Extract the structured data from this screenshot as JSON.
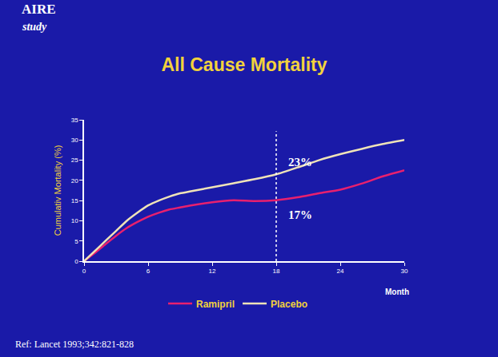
{
  "chart_data": {
    "type": "line",
    "title": "All Cause Mortality",
    "study_label": "AIRE",
    "study_sublabel": "study",
    "source": "Ref: Lancet 1993;342:821-828",
    "xlabel": "Month",
    "ylabel": "Cumulativ Mortality (%)",
    "x": [
      0,
      1,
      2,
      3,
      4,
      5,
      6,
      7,
      8,
      9,
      10,
      12,
      14,
      16,
      18,
      20,
      22,
      24,
      26,
      28,
      30
    ],
    "series": [
      {
        "name": "Ramipril",
        "color": "#e8206e",
        "values": [
          0,
          2,
          4.2,
          6.3,
          8.2,
          9.7,
          11,
          12,
          12.8,
          13.3,
          13.8,
          14.6,
          15.1,
          14.9,
          15.1,
          15.8,
          16.8,
          17.7,
          19.2,
          21,
          22.5
        ]
      },
      {
        "name": "Placebo",
        "color": "#efe3b8",
        "values": [
          0,
          2.5,
          5,
          7.5,
          10,
          12,
          13.8,
          15,
          16,
          16.8,
          17.3,
          18.3,
          19.3,
          20.3,
          21.5,
          23.2,
          25,
          26.5,
          27.8,
          29,
          30
        ]
      }
    ],
    "annotations": [
      {
        "text": "23%",
        "x": 19,
        "y": 24.5
      },
      {
        "text": "17%",
        "x": 19,
        "y": 11.5
      }
    ],
    "reference_line": {
      "x": 18,
      "line_style": "dot"
    },
    "xlim": [
      0,
      30
    ],
    "xticks": [
      0,
      6,
      12,
      18,
      24,
      30
    ],
    "ylim": [
      0,
      35
    ],
    "yticks": [
      0,
      5,
      10,
      15,
      20,
      25,
      30,
      35
    ],
    "grid": false,
    "legend": "bottom"
  }
}
